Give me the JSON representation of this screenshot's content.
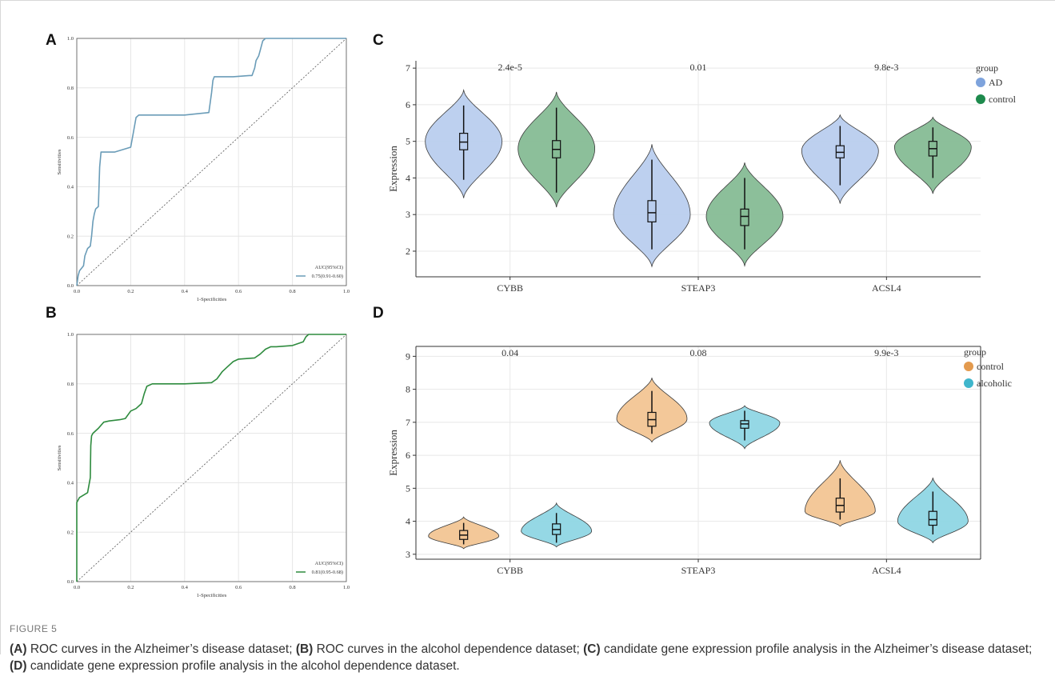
{
  "panels": {
    "A": "A",
    "B": "B",
    "C": "C",
    "D": "D"
  },
  "figure_label": "FIGURE 5",
  "caption": [
    {
      "bold": "(A)",
      "text": " ROC curves in the Alzheimer’s disease dataset; "
    },
    {
      "bold": "(B)",
      "text": " ROC curves in the alcohol dependence dataset; "
    },
    {
      "bold": "(C)",
      "text": " candidate gene expression profile analysis in the Alzheimer’s disease dataset; "
    },
    {
      "bold": "(D)",
      "text": " candidate gene expression profile analysis in the alcohol dependence dataset."
    }
  ],
  "chart_data": [
    {
      "id": "A",
      "type": "line",
      "xlabel": "1-Specificities",
      "ylabel": "Sensitivities",
      "xlim": [
        0,
        1
      ],
      "ylim": [
        0,
        1
      ],
      "ticks": [
        "0.0",
        "0.2",
        "0.4",
        "0.6",
        "0.8",
        "1.0"
      ],
      "grid": true,
      "legend_title": "AUC(95%CI)",
      "series": [
        {
          "name": "0.75(0.91-0.60)",
          "color": "#6a9cb8",
          "x": [
            0,
            0.005,
            0.01,
            0.025,
            0.03,
            0.04,
            0.05,
            0.055,
            0.06,
            0.065,
            0.07,
            0.08,
            0.085,
            0.09,
            0.13,
            0.14,
            0.2,
            0.21,
            0.22,
            0.23,
            0.3,
            0.4,
            0.49,
            0.5,
            0.505,
            0.51,
            0.58,
            0.64,
            0.65,
            0.66,
            0.665,
            0.67,
            0.675,
            0.68,
            0.69,
            0.7,
            0.8,
            0.9,
            1.0
          ],
          "y": [
            0,
            0.04,
            0.06,
            0.08,
            0.12,
            0.15,
            0.16,
            0.2,
            0.26,
            0.29,
            0.31,
            0.32,
            0.48,
            0.54,
            0.54,
            0.54,
            0.56,
            0.62,
            0.68,
            0.69,
            0.69,
            0.69,
            0.7,
            0.78,
            0.83,
            0.845,
            0.845,
            0.85,
            0.85,
            0.88,
            0.91,
            0.92,
            0.93,
            0.95,
            0.99,
            1.0,
            1.0,
            1.0,
            1.0
          ]
        },
        {
          "name": "",
          "color": "#555555",
          "x": [
            0,
            1
          ],
          "y": [
            0,
            1
          ]
        }
      ]
    },
    {
      "id": "B",
      "type": "line",
      "xlabel": "1-Specificities",
      "ylabel": "Sensitivities",
      "xlim": [
        0,
        1
      ],
      "ylim": [
        0,
        1
      ],
      "ticks": [
        "0.0",
        "0.2",
        "0.4",
        "0.6",
        "0.8",
        "1.0"
      ],
      "grid": true,
      "legend_title": "AUC(95%CI)",
      "series": [
        {
          "name": "0.81(0.95-0.68)",
          "color": "#2e8b3e",
          "x": [
            0,
            0,
            0.005,
            0.01,
            0.04,
            0.05,
            0.052,
            0.055,
            0.06,
            0.08,
            0.1,
            0.12,
            0.16,
            0.18,
            0.2,
            0.22,
            0.24,
            0.25,
            0.26,
            0.28,
            0.4,
            0.5,
            0.52,
            0.54,
            0.56,
            0.58,
            0.6,
            0.66,
            0.68,
            0.7,
            0.72,
            0.74,
            0.8,
            0.84,
            0.85,
            0.86,
            0.9,
            1.0
          ],
          "y": [
            0,
            0.32,
            0.33,
            0.34,
            0.36,
            0.42,
            0.55,
            0.59,
            0.6,
            0.62,
            0.645,
            0.65,
            0.655,
            0.66,
            0.69,
            0.7,
            0.72,
            0.76,
            0.79,
            0.8,
            0.8,
            0.805,
            0.82,
            0.85,
            0.87,
            0.89,
            0.9,
            0.905,
            0.92,
            0.94,
            0.95,
            0.95,
            0.955,
            0.97,
            0.99,
            1.0,
            1.0,
            1.0
          ]
        },
        {
          "name": "",
          "color": "#555555",
          "x": [
            0,
            1
          ],
          "y": [
            0,
            1
          ]
        }
      ]
    },
    {
      "id": "C",
      "type": "violin",
      "ylabel": "Expression",
      "ylim": [
        1.3,
        7.2
      ],
      "yticks": [
        2,
        3,
        4,
        5,
        6,
        7
      ],
      "categories": [
        "CYBB",
        "STEAP3",
        "ACSL4"
      ],
      "pvalues": [
        "2.4e-5",
        "0.01",
        "9.8e-3"
      ],
      "legend_title": "group",
      "grid": true,
      "series": [
        {
          "name": "AD",
          "color": "#7ea3dc",
          "fill": "#b9cdee",
          "data": [
            {
              "min": 3.45,
              "max": 6.4,
              "mode": 5.0,
              "q1": 4.77,
              "median": 4.98,
              "q3": 5.22,
              "wlo": 3.95,
              "whi": 5.98
            },
            {
              "min": 1.58,
              "max": 4.92,
              "mode": 3.0,
              "q1": 2.8,
              "median": 3.05,
              "q3": 3.38,
              "wlo": 2.05,
              "whi": 4.5
            },
            {
              "min": 3.3,
              "max": 5.72,
              "mode": 4.75,
              "q1": 4.55,
              "median": 4.7,
              "q3": 4.88,
              "wlo": 3.8,
              "whi": 5.42
            }
          ]
        },
        {
          "name": "control",
          "color": "#1e8a4d",
          "fill": "#86bc95",
          "data": [
            {
              "min": 3.2,
              "max": 6.35,
              "mode": 4.8,
              "q1": 4.55,
              "median": 4.78,
              "q3": 5.02,
              "wlo": 3.6,
              "whi": 5.92
            },
            {
              "min": 1.6,
              "max": 4.42,
              "mode": 2.95,
              "q1": 2.7,
              "median": 2.95,
              "q3": 3.15,
              "wlo": 2.05,
              "whi": 4.0
            },
            {
              "min": 3.57,
              "max": 5.66,
              "mode": 4.85,
              "q1": 4.6,
              "median": 4.8,
              "q3": 5.0,
              "wlo": 4.0,
              "whi": 5.38
            }
          ]
        }
      ]
    },
    {
      "id": "D",
      "type": "violin",
      "ylabel": "Expression",
      "ylim": [
        2.85,
        9.3
      ],
      "yticks": [
        3,
        4,
        5,
        6,
        7,
        8,
        9
      ],
      "categories": [
        "CYBB",
        "STEAP3",
        "ACSL4"
      ],
      "pvalues": [
        "0.04",
        "0.08",
        "9.9e-3"
      ],
      "legend_title": "group",
      "grid": true,
      "series": [
        {
          "name": "control",
          "color": "#e39a4e",
          "fill": "#f2c593",
          "data": [
            {
              "min": 3.17,
              "max": 4.13,
              "mode": 3.55,
              "q1": 3.45,
              "median": 3.58,
              "q3": 3.72,
              "wlo": 3.3,
              "whi": 3.95
            },
            {
              "min": 6.4,
              "max": 8.35,
              "mode": 7.1,
              "q1": 6.88,
              "median": 7.08,
              "q3": 7.3,
              "wlo": 6.65,
              "whi": 7.95
            },
            {
              "min": 3.85,
              "max": 5.85,
              "mode": 4.3,
              "q1": 4.28,
              "median": 4.48,
              "q3": 4.7,
              "wlo": 4.05,
              "whi": 5.3
            }
          ]
        },
        {
          "name": "alcoholic",
          "color": "#3fb6cc",
          "fill": "#8fd6e4",
          "data": [
            {
              "min": 3.22,
              "max": 4.55,
              "mode": 3.7,
              "q1": 3.6,
              "median": 3.75,
              "q3": 3.92,
              "wlo": 3.35,
              "whi": 4.25
            },
            {
              "min": 6.2,
              "max": 7.5,
              "mode": 6.98,
              "q1": 6.82,
              "median": 6.95,
              "q3": 7.05,
              "wlo": 6.45,
              "whi": 7.35
            },
            {
              "min": 3.35,
              "max": 5.32,
              "mode": 4.0,
              "q1": 3.88,
              "median": 4.05,
              "q3": 4.3,
              "wlo": 3.6,
              "whi": 4.9
            }
          ]
        }
      ]
    }
  ]
}
